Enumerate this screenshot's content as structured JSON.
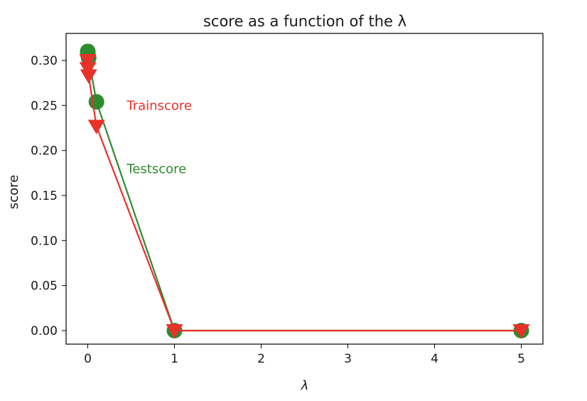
{
  "chart_data": {
    "type": "line",
    "title": "score as a function of the λ",
    "xlabel": "λ",
    "ylabel": "score",
    "xlim": [
      -0.25,
      5.25
    ],
    "ylim": [
      -0.015,
      0.33
    ],
    "xticks": [
      0,
      1,
      2,
      3,
      4,
      5
    ],
    "yticks": [
      0.0,
      0.05,
      0.1,
      0.15,
      0.2,
      0.25,
      0.3
    ],
    "xtick_labels": [
      "0",
      "1",
      "2",
      "3",
      "4",
      "5"
    ],
    "ytick_labels": [
      "0.00",
      "0.05",
      "0.10",
      "0.15",
      "0.20",
      "0.25",
      "0.30"
    ],
    "grid": false,
    "series": [
      {
        "name": "Testscore",
        "color": "#2e8b2e",
        "marker": "circle",
        "x": [
          0,
          0.001,
          0.01,
          0.1,
          1,
          5
        ],
        "y": [
          0.31,
          0.307,
          0.303,
          0.254,
          0.0,
          0.0
        ]
      },
      {
        "name": "Trainscore",
        "color": "#e8312a",
        "marker": "triangle-down",
        "x": [
          0,
          0.001,
          0.01,
          0.1,
          1,
          5
        ],
        "y": [
          0.3,
          0.291,
          0.283,
          0.227,
          0.0,
          0.0
        ]
      }
    ],
    "annotations": [
      {
        "text": "Trainscore",
        "x": 0.45,
        "y": 0.245,
        "color": "#e8312a"
      },
      {
        "text": "Testscore",
        "x": 0.45,
        "y": 0.175,
        "color": "#2e8b2e"
      }
    ]
  }
}
